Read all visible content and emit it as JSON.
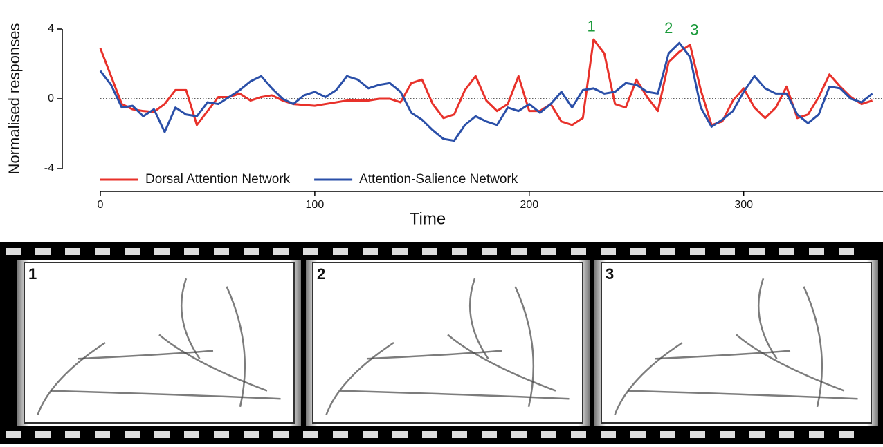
{
  "chart_data": {
    "type": "line",
    "x_label": "Time",
    "y_label": "Normalised responses",
    "x": [
      0,
      5,
      10,
      15,
      20,
      25,
      30,
      35,
      40,
      45,
      50,
      55,
      60,
      65,
      70,
      75,
      80,
      85,
      90,
      95,
      100,
      105,
      110,
      115,
      120,
      125,
      130,
      135,
      140,
      145,
      150,
      155,
      160,
      165,
      170,
      175,
      180,
      185,
      190,
      195,
      200,
      205,
      210,
      215,
      220,
      225,
      230,
      235,
      240,
      245,
      250,
      255,
      260,
      265,
      270,
      275,
      280,
      285,
      290,
      295,
      300,
      305,
      310,
      315,
      320,
      325,
      330,
      335,
      340,
      345,
      350,
      355,
      360
    ],
    "series": [
      {
        "name": "Dorsal Attention Network",
        "color": "#e8312a",
        "values": [
          2.9,
          1.3,
          -0.3,
          -0.6,
          -0.7,
          -0.75,
          -0.3,
          0.5,
          0.5,
          -1.5,
          -0.7,
          0.1,
          0.1,
          0.3,
          -0.1,
          0.1,
          0.2,
          -0.1,
          -0.3,
          -0.35,
          -0.4,
          -0.3,
          -0.2,
          -0.1,
          -0.1,
          -0.1,
          0,
          0,
          -0.2,
          0.9,
          1.1,
          -0.3,
          -1.1,
          -0.9,
          0.5,
          1.3,
          -0.1,
          -0.7,
          -0.3,
          1.3,
          -0.7,
          -0.7,
          -0.3,
          -1.3,
          -1.5,
          -1.1,
          3.4,
          2.6,
          -0.3,
          -0.5,
          1.1,
          0.1,
          -0.7,
          2.1,
          2.7,
          3.1,
          0.5,
          -1.5,
          -1.3,
          -0.1,
          0.6,
          -0.5,
          -1.1,
          -0.5,
          0.7,
          -1.1,
          -0.9,
          0.1,
          1.4,
          0.7,
          0.1,
          -0.3,
          -0.1
        ]
      },
      {
        "name": "Attention-Salience Network",
        "color": "#2a4fa8",
        "values": [
          1.6,
          0.8,
          -0.5,
          -0.4,
          -1.0,
          -0.6,
          -1.9,
          -0.5,
          -0.9,
          -1.0,
          -0.2,
          -0.3,
          0.1,
          0.5,
          1.0,
          1.3,
          0.6,
          0,
          -0.3,
          0.2,
          0.4,
          0.1,
          0.5,
          1.3,
          1.1,
          0.6,
          0.8,
          0.9,
          0.4,
          -0.8,
          -1.2,
          -1.8,
          -2.3,
          -2.4,
          -1.5,
          -1.0,
          -1.3,
          -1.5,
          -0.5,
          -0.7,
          -0.3,
          -0.8,
          -0.3,
          0.4,
          -0.5,
          0.5,
          0.6,
          0.3,
          0.4,
          0.9,
          0.8,
          0.4,
          0.3,
          2.6,
          3.2,
          2.4,
          -0.5,
          -1.6,
          -1.2,
          -0.7,
          0.4,
          1.3,
          0.6,
          0.3,
          0.3,
          -0.9,
          -1.4,
          -0.9,
          0.7,
          0.6,
          0,
          -0.2,
          0.3
        ]
      }
    ],
    "xlim": [
      0,
      364
    ],
    "xticks": [
      0,
      100,
      200,
      300
    ],
    "ylim": [
      -4,
      4
    ],
    "yticks": [
      -4,
      0,
      4
    ],
    "zero_line": true,
    "legend": "lower-left",
    "annotations": [
      {
        "text": "1",
        "x": 229,
        "y": 4.1,
        "color": "#1a9a3a"
      },
      {
        "text": "2",
        "x": 265,
        "y": 4.0,
        "color": "#1a9a3a"
      },
      {
        "text": "3",
        "x": 277,
        "y": 3.9,
        "color": "#1a9a3a"
      }
    ]
  },
  "film_strip": {
    "frames": [
      "1",
      "2",
      "3"
    ]
  }
}
